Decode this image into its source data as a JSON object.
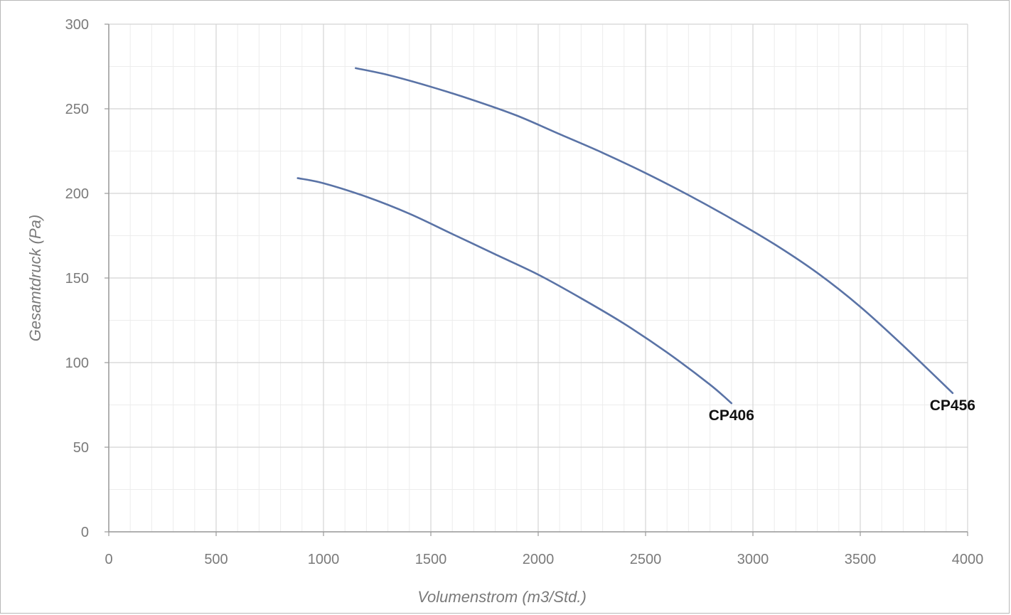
{
  "chart_data": {
    "type": "line",
    "title": "",
    "xlabel": "Volumenstrom (m3/Std.)",
    "ylabel": "Gesamtdruck (Pa)",
    "xlim": [
      0,
      4000
    ],
    "ylim": [
      0,
      300
    ],
    "x_ticks": [
      0,
      500,
      1000,
      1500,
      2000,
      2500,
      3000,
      3500,
      4000
    ],
    "y_ticks": [
      0,
      50,
      100,
      150,
      200,
      250,
      300
    ],
    "grid": true,
    "minor_grid": true,
    "legend": "none",
    "line_color": "#5a73a6",
    "series": [
      {
        "name": "CP406",
        "x": [
          880,
          1000,
          1200,
          1400,
          1600,
          1800,
          2000,
          2200,
          2400,
          2600,
          2800,
          2900
        ],
        "y": [
          209,
          206,
          198,
          188,
          176,
          164,
          152,
          138,
          123,
          106,
          87,
          76
        ]
      },
      {
        "name": "CP456",
        "x": [
          1150,
          1300,
          1500,
          1700,
          1900,
          2100,
          2300,
          2500,
          2700,
          2900,
          3100,
          3300,
          3500,
          3700,
          3930
        ],
        "y": [
          274,
          270,
          263,
          255,
          246,
          235,
          224,
          212,
          199,
          185,
          170,
          153,
          133,
          110,
          82
        ]
      }
    ]
  }
}
